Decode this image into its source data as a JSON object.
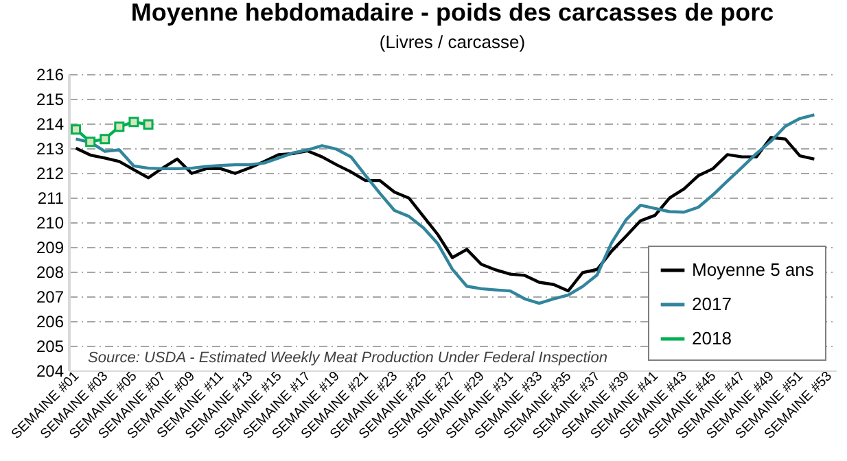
{
  "chart_data": {
    "type": "line",
    "title": "Moyenne hebdomadaire - poids des carcasses de porc",
    "subtitle": "(Livres / carcasse)",
    "categories": [
      "SEMAINE #01",
      null,
      "SEMAINE #03",
      null,
      "SEMAINE #05",
      null,
      "SEMAINE #07",
      null,
      "SEMAINE #09",
      null,
      "SEMAINE #11",
      null,
      "SEMAINE #13",
      null,
      "SEMAINE #15",
      null,
      "SEMAINE #17",
      null,
      "SEMAINE #19",
      null,
      "SEMAINE #21",
      null,
      "SEMAINE #23",
      null,
      "SEMAINE #25",
      null,
      "SEMAINE #27",
      null,
      "SEMAINE #29",
      null,
      "SEMAINE #31",
      null,
      "SEMAINE #33",
      null,
      "SEMAINE #35",
      null,
      "SEMAINE #37",
      null,
      "SEMAINE #39",
      null,
      "SEMAINE #41",
      null,
      "SEMAINE #43",
      null,
      "SEMAINE #45",
      null,
      "SEMAINE #47",
      null,
      "SEMAINE #49",
      null,
      "SEMAINE #51",
      null,
      "SEMAINE #53"
    ],
    "series": [
      {
        "name": "Moyenne 5 ans",
        "color": "#000000",
        "values": [
          213.0,
          212.72,
          212.6,
          212.46,
          212.13,
          211.8,
          212.2,
          212.56,
          211.98,
          212.17,
          212.17,
          211.98,
          212.2,
          212.46,
          212.74,
          212.78,
          212.89,
          212.65,
          212.33,
          212.04,
          211.69,
          211.69,
          211.22,
          210.98,
          210.24,
          209.5,
          208.57,
          208.9,
          208.3,
          208.07,
          207.9,
          207.85,
          207.57,
          207.48,
          207.22,
          207.96,
          208.09,
          208.83,
          209.44,
          210.06,
          210.28,
          210.98,
          211.35,
          211.89,
          212.17,
          212.74,
          212.65,
          212.65,
          213.43,
          213.37,
          212.69,
          212.56,
          null
        ]
      },
      {
        "name": "2017",
        "color": "#31859c",
        "values": [
          213.37,
          213.24,
          212.87,
          212.93,
          212.28,
          212.19,
          212.17,
          212.17,
          212.19,
          212.26,
          212.3,
          212.33,
          212.33,
          212.4,
          212.6,
          212.81,
          212.93,
          213.1,
          212.96,
          212.65,
          211.9,
          211.17,
          210.48,
          210.24,
          209.78,
          209.13,
          208.1,
          207.41,
          207.31,
          207.26,
          207.22,
          206.9,
          206.72,
          206.9,
          207.05,
          207.4,
          207.87,
          209.17,
          210.1,
          210.69,
          210.56,
          210.43,
          210.41,
          210.61,
          211.11,
          211.67,
          212.22,
          212.78,
          213.28,
          213.89,
          214.2,
          214.35,
          null
        ]
      },
      {
        "name": "2018",
        "color": "#00b050",
        "marker": "square",
        "values": [
          213.76,
          213.26,
          213.37,
          213.87,
          214.06,
          213.96,
          null,
          null,
          null,
          null,
          null,
          null,
          null,
          null,
          null,
          null,
          null,
          null,
          null,
          null,
          null,
          null,
          null,
          null,
          null,
          null,
          null,
          null,
          null,
          null,
          null,
          null,
          null,
          null,
          null,
          null,
          null,
          null,
          null,
          null,
          null,
          null,
          null,
          null,
          null,
          null,
          null,
          null,
          null,
          null,
          null,
          null,
          null
        ]
      }
    ],
    "ylim": [
      204,
      216
    ],
    "yticks": [
      204,
      205,
      206,
      207,
      208,
      209,
      210,
      211,
      212,
      213,
      214,
      215,
      216
    ],
    "grid": "y",
    "legend": "bottom right",
    "annotations": [
      "Source: USDA - Estimated Weekly Meat Production Under Federal Inspection"
    ]
  }
}
